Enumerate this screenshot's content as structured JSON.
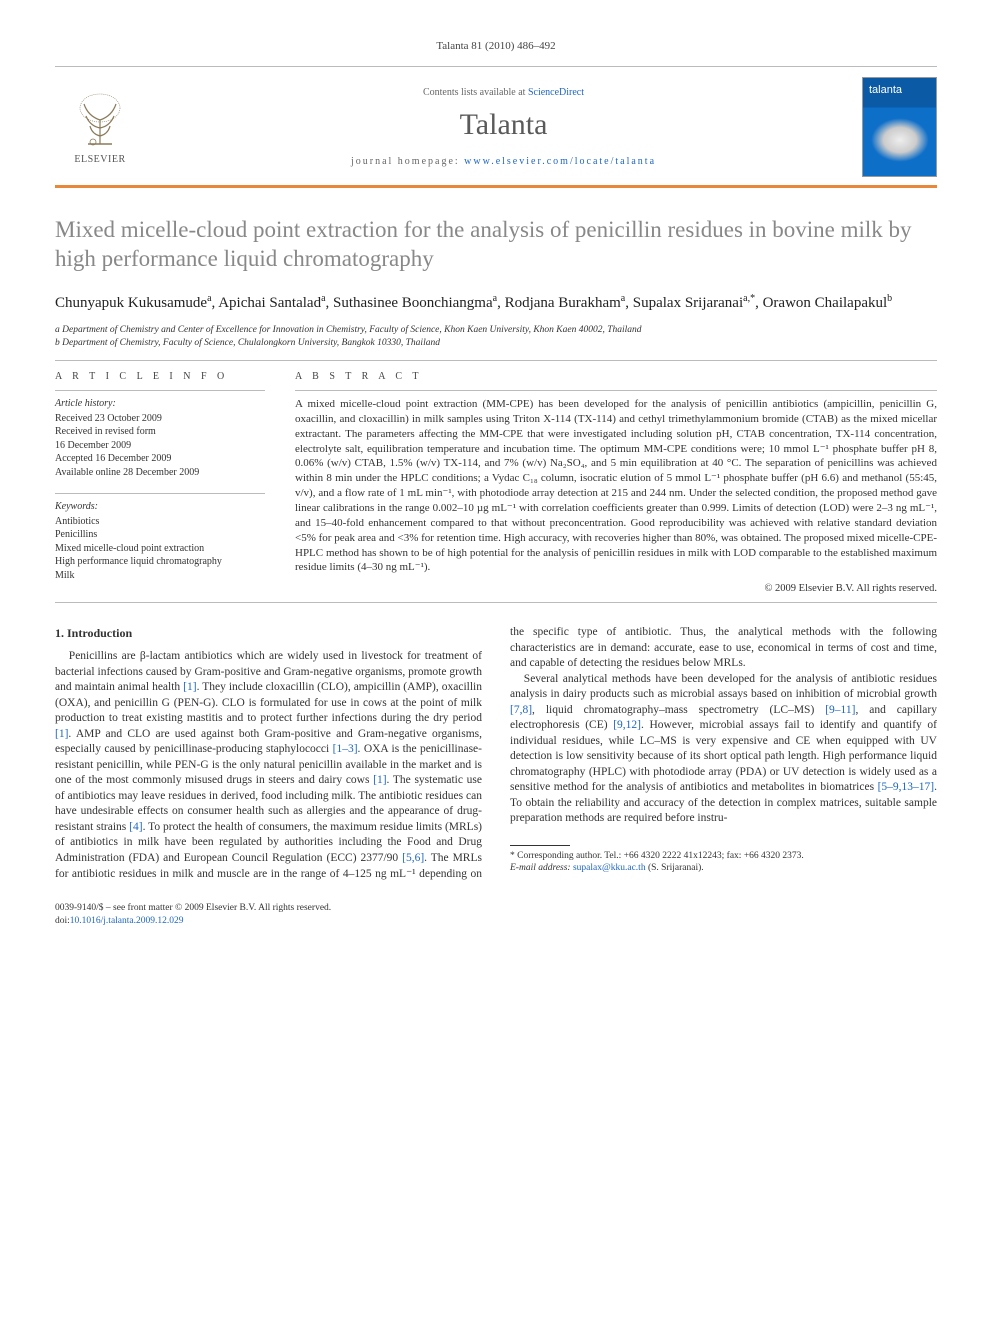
{
  "header": {
    "citation": "Talanta 81 (2010) 486–492",
    "contents_prefix": "Contents lists available at ",
    "contents_link": "ScienceDirect",
    "journal": "Talanta",
    "homepage_prefix": "journal homepage: ",
    "homepage_url": "www.elsevier.com/locate/talanta",
    "elsevier_label": "ELSEVIER",
    "cover_label": "talanta"
  },
  "article": {
    "title": "Mixed micelle-cloud point extraction for the analysis of penicillin residues in bovine milk by high performance liquid chromatography",
    "authors_html": "Chunyapuk Kukusamude<sup>a</sup>, Apichai Santalad<sup>a</sup>, Suthasinee Boonchiangma<sup>a</sup>, Rodjana Burakham<sup>a</sup>, Supalax Srijaranai<sup>a,*</sup>, Orawon Chailapakul<sup>b</sup>",
    "affiliations": [
      "a Department of Chemistry and Center of Excellence for Innovation in Chemistry, Faculty of Science, Khon Kaen University, Khon Kaen 40002, Thailand",
      "b Department of Chemistry, Faculty of Science, Chulalongkorn University, Bangkok 10330, Thailand"
    ]
  },
  "info": {
    "heading": "A R T I C L E   I N F O",
    "history_label": "Article history:",
    "history": [
      "Received 23 October 2009",
      "Received in revised form",
      "16 December 2009",
      "Accepted 16 December 2009",
      "Available online 28 December 2009"
    ],
    "keywords_label": "Keywords:",
    "keywords": [
      "Antibiotics",
      "Penicillins",
      "Mixed micelle-cloud point extraction",
      "High performance liquid chromatography",
      "Milk"
    ]
  },
  "abstract": {
    "heading": "A B S T R A C T",
    "text": "A mixed micelle-cloud point extraction (MM-CPE) has been developed for the analysis of penicillin antibiotics (ampicillin, penicillin G, oxacillin, and cloxacillin) in milk samples using Triton X-114 (TX-114) and cethyl trimethylammonium bromide (CTAB) as the mixed micellar extractant. The parameters affecting the MM-CPE that were investigated including solution pH, CTAB concentration, TX-114 concentration, electrolyte salt, equilibration temperature and incubation time. The optimum MM-CPE conditions were; 10 mmol L⁻¹ phosphate buffer pH 8, 0.06% (w/v) CTAB, 1.5% (w/v) TX-114, and 7% (w/v) Na₂SO₄, and 5 min equilibration at 40 °C. The separation of penicillins was achieved within 8 min under the HPLC conditions; a Vydac C₁₈ column, isocratic elution of 5 mmol L⁻¹ phosphate buffer (pH 6.6) and methanol (55:45, v/v), and a flow rate of 1 mL min⁻¹, with photodiode array detection at 215 and 244 nm. Under the selected condition, the proposed method gave linear calibrations in the range 0.002–10 µg mL⁻¹ with correlation coefficients greater than 0.999. Limits of detection (LOD) were 2–3 ng mL⁻¹, and 15–40-fold enhancement compared to that without preconcentration. Good reproducibility was achieved with relative standard deviation <5% for peak area and <3% for retention time. High accuracy, with recoveries higher than 80%, was obtained. The proposed mixed micelle-CPE-HPLC method has shown to be of high potential for the analysis of penicillin residues in milk with LOD comparable to the established maximum residue limits (4–30 ng mL⁻¹).",
    "copyright": "© 2009 Elsevier B.V. All rights reserved."
  },
  "section1": {
    "heading": "1.  Introduction",
    "p1_a": "Penicillins are β-lactam antibiotics which are widely used in livestock for treatment of bacterial infections caused by Gram-positive and Gram-negative organisms, promote growth and maintain animal health ",
    "r1": "[1]",
    "p1_b": ". They include cloxacillin (CLO), ampicillin (AMP), oxacillin (OXA), and penicillin G (PEN-G). CLO is formulated for use in cows at the point of milk production to treat existing mastitis and to protect further infections during the dry period ",
    "r2": "[1]",
    "p1_c": ". AMP and CLO are used against both Gram-positive and Gram-negative organisms, especially caused by penicillinase-producing staphylococci ",
    "r3": "[1–3]",
    "p1_d": ". OXA is the penicillinase-resistant penicillin, while PEN-G is the only natural penicillin available in the market and is one of the most commonly misused drugs in steers and dairy cows ",
    "r4": "[1]",
    "p1_e": ". The systematic use of antibiotics may leave residues in derived, food including milk. The antibiotic residues can have undesirable effects on consumer health such as allergies and the appearance of drug-resistant strains ",
    "r5": "[4]",
    "p1_f": ". To protect the health",
    "p1cont_a": "of consumers, the maximum residue limits (MRLs) of antibiotics in milk have been regulated by authorities including the Food and Drug Administration (FDA) and European Council Regulation (ECC) 2377/90 ",
    "r6": "[5,6]",
    "p1cont_b": ". The MRLs for antibiotic residues in milk and muscle are in the range of 4–125 ng mL⁻¹ depending on the specific type of antibiotic. Thus, the analytical methods with the following characteristics are in demand: accurate, ease to use, economical in terms of cost and time, and capable of detecting the residues below MRLs.",
    "p2_a": "Several analytical methods have been developed for the analysis of antibiotic residues analysis in dairy products such as microbial assays based on inhibition of microbial growth ",
    "r7": "[7,8]",
    "p2_b": ", liquid chromatography–mass spectrometry (LC–MS) ",
    "r8": "[9–11]",
    "p2_c": ", and capillary electrophoresis (CE) ",
    "r9": "[9,12]",
    "p2_d": ". However, microbial assays fail to identify and quantify of individual residues, while LC–MS is very expensive and CE when equipped with UV detection is low sensitivity because of its short optical path length. High performance liquid chromatography (HPLC) with photodiode array (PDA) or UV detection is widely used as a sensitive method for the analysis of antibiotics and metabolites in biomatrices ",
    "r10": "[5–9,13–17]",
    "p2_e": ". To obtain the reliability and accuracy of the detection in complex matrices, suitable sample preparation methods are required before instru-"
  },
  "footnotes": {
    "corr": "* Corresponding author. Tel.: +66 4320 2222 41x12243; fax: +66 4320 2373.",
    "email_label": "E-mail address: ",
    "email": "supalax@kku.ac.th",
    "email_suffix": " (S. Srijaranai)."
  },
  "bottom": {
    "issn": "0039-9140/$ – see front matter © 2009 Elsevier B.V. All rights reserved.",
    "doi_label": "doi:",
    "doi": "10.1016/j.talanta.2009.12.029"
  }
}
